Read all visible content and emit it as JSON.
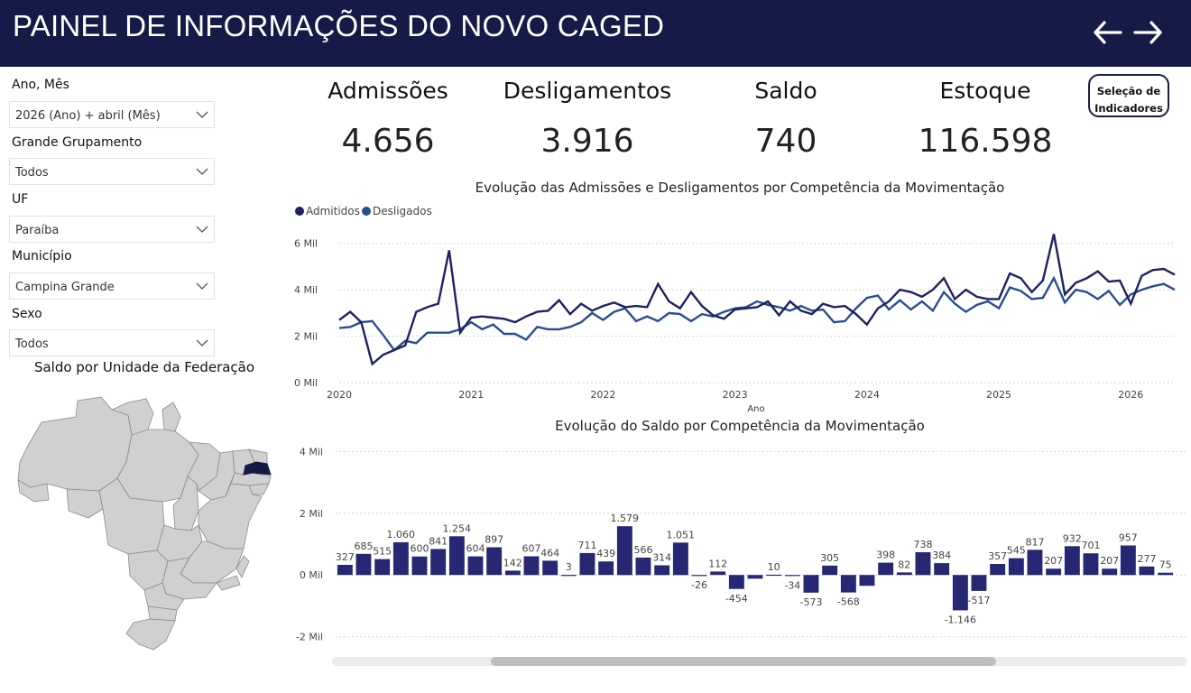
{
  "header": {
    "title": "PAINEL DE INFORMAÇÕES DO NOVO CAGED"
  },
  "filters": [
    {
      "label": "Ano, Mês",
      "value": "2026 (Ano) + abril (Mês)"
    },
    {
      "label": "Grande Grupamento",
      "value": "Todos"
    },
    {
      "label": "UF",
      "value": "Paraíba"
    },
    {
      "label": "Município",
      "value": "Campina Grande"
    },
    {
      "label": "Sexo",
      "value": "Todos"
    }
  ],
  "kpis": [
    {
      "label": "Admissões",
      "value": "4.656"
    },
    {
      "label": "Desligamentos",
      "value": "3.916"
    },
    {
      "label": "Saldo",
      "value": "740"
    },
    {
      "label": "Estoque",
      "value": "116.598"
    }
  ],
  "selection_button": {
    "line1": "Seleção de",
    "line2": "Indicadores"
  },
  "map": {
    "title": "Saldo por Unidade da Federação",
    "highlight_color": "#141a44",
    "base_color": "#d0d0d0"
  },
  "colors": {
    "header_bg": "#161a47",
    "admitidos": "#1f2160",
    "desligados": "#2a4d8f",
    "bar": "#262873"
  },
  "chart_data": [
    {
      "type": "line",
      "title": "Evolução das Admissões e Desligamentos por Competência da Movimentação",
      "xlabel": "Ano",
      "ylabel": "",
      "ylim": [
        0,
        7000
      ],
      "yticks": [
        "0 Mil",
        "2 Mil",
        "4 Mil",
        "6 Mil"
      ],
      "ytick_values": [
        0,
        2000,
        4000,
        6000
      ],
      "xticks": [
        "2020",
        "2021",
        "2022",
        "2023",
        "2024",
        "2025",
        "2026"
      ],
      "x_start": "2020-01",
      "x_end": "2026-04",
      "legend_position": "top-left",
      "grid": true,
      "series": [
        {
          "name": "Admitidos",
          "values": [
            2700,
            3050,
            2600,
            800,
            1200,
            1400,
            1600,
            3050,
            3250,
            3400,
            5700,
            2150,
            2800,
            2850,
            2800,
            2750,
            2600,
            2850,
            3050,
            3100,
            3550,
            2950,
            3400,
            3100,
            3300,
            3450,
            3250,
            3300,
            3250,
            4250,
            3500,
            3200,
            3900,
            3300,
            2900,
            2750,
            3150,
            3200,
            3250,
            3500,
            2900,
            3500,
            3100,
            2950,
            3400,
            3250,
            3300,
            2950,
            2500,
            3200,
            3500,
            4000,
            3900,
            3700,
            4000,
            4500,
            3600,
            4000,
            3700,
            3600,
            3600,
            4700,
            4500,
            3900,
            4400,
            6400,
            3800,
            4300,
            4500,
            4800,
            4350,
            4400,
            3400,
            4600,
            4850,
            4900,
            4650
          ]
        },
        {
          "name": "Desligados",
          "values": [
            2350,
            2400,
            2600,
            2650,
            2050,
            1400,
            1800,
            1700,
            2150,
            2150,
            2150,
            2300,
            2600,
            2300,
            2500,
            2100,
            2100,
            1850,
            2400,
            2300,
            2300,
            2400,
            2600,
            3000,
            2700,
            3050,
            3200,
            2650,
            2850,
            2650,
            3000,
            2950,
            2650,
            2950,
            2850,
            3050,
            3200,
            3250,
            3500,
            3350,
            3250,
            3100,
            3300,
            3100,
            3150,
            2600,
            2650,
            3200,
            3650,
            3750,
            3150,
            3550,
            3150,
            3500,
            3100,
            3900,
            3400,
            3050,
            3350,
            3500,
            3200,
            4100,
            3950,
            3600,
            3650,
            4500,
            3450,
            4000,
            3900,
            3600,
            3950,
            3350,
            3800,
            4000,
            4150,
            4250,
            4000
          ]
        }
      ]
    },
    {
      "type": "bar",
      "title": "Evolução do Saldo por Competência da Movimentação",
      "ylim": [
        -2300,
        4300
      ],
      "yticks": [
        "-2 Mil",
        "0 Mil",
        "2 Mil",
        "4 Mil"
      ],
      "ytick_values": [
        -2000,
        0,
        2000,
        4000
      ],
      "grid": true,
      "values": [
        327,
        685,
        515,
        1060,
        600,
        841,
        1254,
        604,
        897,
        142,
        607,
        464,
        3,
        711,
        439,
        1579,
        566,
        314,
        1051,
        -26,
        112,
        -454,
        -120,
        10,
        -34,
        -573,
        305,
        -568,
        -350,
        398,
        82,
        738,
        384,
        -1146,
        -517,
        357,
        545,
        817,
        207,
        932,
        701,
        207,
        957,
        277,
        75
      ],
      "labels": [
        "327",
        "685",
        "515",
        "1.060",
        "600",
        "841",
        "1.254",
        "604",
        "897",
        "142",
        "607",
        "464",
        "3",
        "711",
        "439",
        "1.579",
        "566",
        "314",
        "1.051",
        "-26",
        "112",
        "-454",
        "",
        "10",
        "-34",
        "-573",
        "305",
        "-568",
        "",
        "398",
        "82",
        "738",
        "384",
        "-1.146",
        "-517",
        "357",
        "545",
        "817",
        "207",
        "932",
        "701",
        "207",
        "957",
        "277",
        "75"
      ]
    }
  ]
}
